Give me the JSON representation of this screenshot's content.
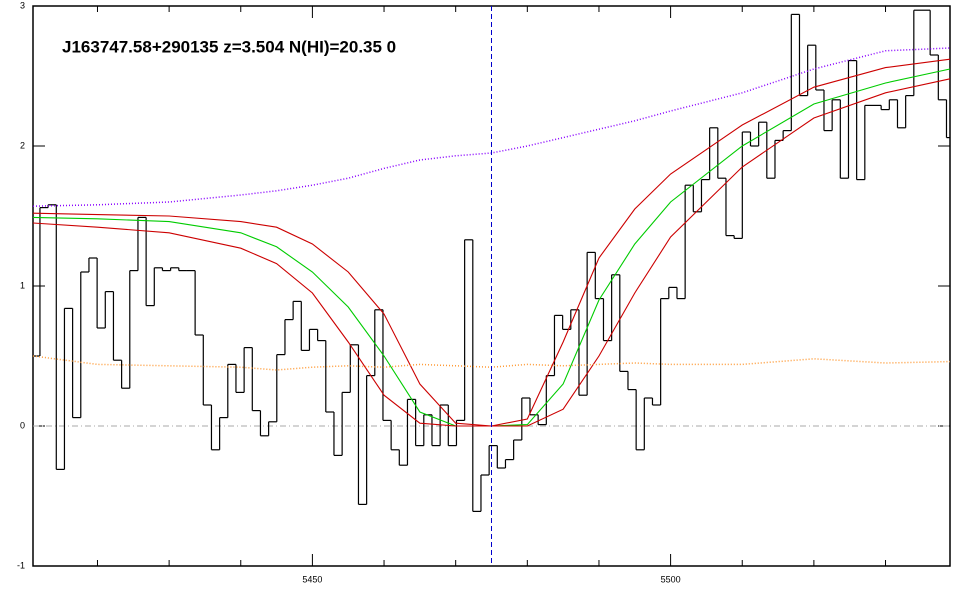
{
  "chart_data": {
    "type": "line",
    "title": "J163747.58+290135 z=3.504 N(HI)=20.35 0",
    "xlim": [
      5411,
      5539
    ],
    "ylim": [
      -1,
      3
    ],
    "xticks": [
      5450,
      5500
    ],
    "xticks_minor": [
      5420,
      5430,
      5440,
      5460,
      5470,
      5480,
      5490,
      5510,
      5520,
      5530
    ],
    "yticks": [
      -1,
      0,
      1,
      2,
      3
    ],
    "marker_x": 5475,
    "marker_color": "#0000cc",
    "zero_line_color": "#aaaaaa",
    "flux": {
      "color": "#000000",
      "x": [
        5411.4,
        5412.54,
        5413.68,
        5414.82,
        5415.96,
        5417.1,
        5418.24,
        5419.38,
        5420.52,
        5421.66,
        5422.8,
        5423.94,
        5425.08,
        5426.22,
        5427.36,
        5428.5,
        5429.64,
        5430.78,
        5431.92,
        5433.06,
        5434.2,
        5435.34,
        5436.48,
        5437.62,
        5438.76,
        5439.9,
        5441.04,
        5442.18,
        5443.32,
        5444.46,
        5445.6,
        5446.74,
        5447.88,
        5449.02,
        5450.16,
        5451.3,
        5452.44,
        5453.58,
        5454.72,
        5455.86,
        5457.0,
        5458.14,
        5459.28,
        5460.42,
        5461.56,
        5462.7,
        5463.84,
        5464.98,
        5466.12,
        5467.26,
        5468.4,
        5469.54,
        5470.68,
        5471.82,
        5472.96,
        5474.1,
        5475.24,
        5476.38,
        5477.52,
        5478.66,
        5479.8,
        5480.94,
        5482.08,
        5483.22,
        5484.36,
        5485.5,
        5486.64,
        5487.78,
        5488.92,
        5490.06,
        5491.2,
        5492.34,
        5493.48,
        5494.62,
        5495.76,
        5496.9,
        5498.04,
        5499.18,
        5500.32,
        5501.46,
        5502.6,
        5503.74,
        5504.88,
        5506.02,
        5507.16,
        5508.3,
        5509.44,
        5510.58,
        5511.72,
        5512.86,
        5514.0,
        5515.14,
        5516.28,
        5517.42,
        5518.56,
        5519.7,
        5520.84,
        5521.98,
        5523.12,
        5524.26,
        5525.4,
        5526.54,
        5527.68,
        5528.82,
        5529.96,
        5531.1,
        5532.24,
        5533.38,
        5534.52,
        5535.66,
        5536.8,
        5537.94,
        5539.08
      ],
      "values": [
        0.5,
        1.56,
        1.58,
        -0.31,
        0.84,
        0.06,
        1.1,
        1.2,
        0.7,
        0.96,
        0.47,
        0.27,
        1.11,
        1.49,
        0.86,
        1.13,
        1.11,
        1.13,
        1.11,
        1.11,
        0.65,
        0.15,
        -0.17,
        0.06,
        0.44,
        0.24,
        0.56,
        0.11,
        -0.07,
        0.03,
        0.51,
        0.76,
        0.89,
        0.54,
        0.69,
        0.61,
        0.1,
        -0.21,
        0.24,
        0.58,
        -0.56,
        0.36,
        0.83,
        0.04,
        -0.17,
        -0.28,
        0.19,
        -0.14,
        0.08,
        -0.14,
        0.15,
        -0.14,
        0.04,
        1.33,
        -0.61,
        -0.35,
        -0.14,
        -0.3,
        -0.24,
        -0.1,
        0.2,
        0.08,
        0.01,
        0.36,
        0.79,
        0.69,
        0.83,
        0.22,
        1.24,
        0.91,
        0.61,
        1.08,
        0.39,
        0.26,
        -0.17,
        0.2,
        0.15,
        0.91,
        0.99,
        0.91,
        1.72,
        1.53,
        1.76,
        2.13,
        1.77,
        1.36,
        1.34,
        2.1,
        2.0,
        2.17,
        1.77,
        2.04,
        2.11,
        2.94,
        2.36,
        2.72,
        2.4,
        2.11,
        2.33,
        1.77,
        2.61,
        1.76,
        2.29,
        2.29,
        2.26,
        2.33,
        2.13,
        2.36,
        2.97,
        2.97,
        2.65,
        2.33,
        2.06
      ]
    },
    "model_x": [
      5411,
      5420,
      5430,
      5440,
      5445,
      5450,
      5455,
      5460,
      5465,
      5470,
      5475,
      5480,
      5485,
      5490,
      5495,
      5500,
      5510,
      5520,
      5530,
      5539
    ],
    "series": [
      {
        "color": "#00cc00",
        "style": "solid",
        "values": [
          1.49,
          1.48,
          1.46,
          1.38,
          1.28,
          1.1,
          0.85,
          0.5,
          0.1,
          0.0,
          0.0,
          0.01,
          0.3,
          0.9,
          1.3,
          1.6,
          2.0,
          2.3,
          2.45,
          2.55
        ]
      },
      {
        "color": "#cc0000",
        "style": "solid",
        "values": [
          1.52,
          1.51,
          1.5,
          1.46,
          1.42,
          1.3,
          1.1,
          0.8,
          0.3,
          0.02,
          0.0,
          0.05,
          0.6,
          1.2,
          1.55,
          1.8,
          2.15,
          2.42,
          2.56,
          2.62
        ]
      },
      {
        "color": "#cc0000",
        "style": "solid",
        "values": [
          1.45,
          1.42,
          1.38,
          1.27,
          1.16,
          0.95,
          0.6,
          0.22,
          0.02,
          0.0,
          0.0,
          0.0,
          0.12,
          0.5,
          0.95,
          1.35,
          1.85,
          2.2,
          2.38,
          2.48
        ]
      },
      {
        "color": "#8800ff",
        "style": "dotted",
        "values": [
          1.57,
          1.58,
          1.6,
          1.65,
          1.68,
          1.72,
          1.77,
          1.84,
          1.9,
          1.93,
          1.95,
          2.0,
          2.06,
          2.12,
          2.18,
          2.25,
          2.38,
          2.55,
          2.68,
          2.7
        ]
      },
      {
        "color": "#ff9933",
        "style": "dotted",
        "values": [
          0.5,
          0.44,
          0.43,
          0.42,
          0.4,
          0.42,
          0.43,
          0.42,
          0.44,
          0.43,
          0.42,
          0.44,
          0.43,
          0.44,
          0.45,
          0.44,
          0.44,
          0.48,
          0.45,
          0.46
        ]
      }
    ]
  }
}
